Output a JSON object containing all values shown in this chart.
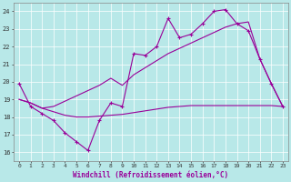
{
  "xlabel": "Windchill (Refroidissement éolien,°C)",
  "bg_color": "#b8e8e8",
  "line_color": "#990099",
  "ylim": [
    15.5,
    24.5
  ],
  "xlim": [
    -0.5,
    23.5
  ],
  "yticks": [
    16,
    17,
    18,
    19,
    20,
    21,
    22,
    23,
    24
  ],
  "x_ticks": [
    0,
    1,
    2,
    3,
    4,
    5,
    6,
    7,
    8,
    9,
    10,
    11,
    12,
    13,
    14,
    15,
    16,
    17,
    18,
    19,
    20,
    21,
    22,
    23
  ],
  "series1_y": [
    19.9,
    18.6,
    18.2,
    17.8,
    17.1,
    16.6,
    16.1,
    17.8,
    18.8,
    18.6,
    21.6,
    21.5,
    22.0,
    23.6,
    22.5,
    22.7,
    23.3,
    24.0,
    24.1,
    23.3,
    22.9,
    21.3,
    19.9,
    18.6
  ],
  "series2_y": [
    19.0,
    18.8,
    18.5,
    18.3,
    18.1,
    18.0,
    18.0,
    18.05,
    18.1,
    18.15,
    18.25,
    18.35,
    18.45,
    18.55,
    18.6,
    18.65,
    18.65,
    18.65,
    18.65,
    18.65,
    18.65,
    18.65,
    18.65,
    18.6
  ],
  "series3_y": [
    19.0,
    18.8,
    18.5,
    18.6,
    18.9,
    19.2,
    19.5,
    19.8,
    20.2,
    19.8,
    20.4,
    20.8,
    21.2,
    21.6,
    21.9,
    22.2,
    22.5,
    22.8,
    23.1,
    23.3,
    23.4,
    21.3,
    19.9,
    18.6
  ],
  "grid_color": "#aadddd",
  "spine_color": "#888888"
}
